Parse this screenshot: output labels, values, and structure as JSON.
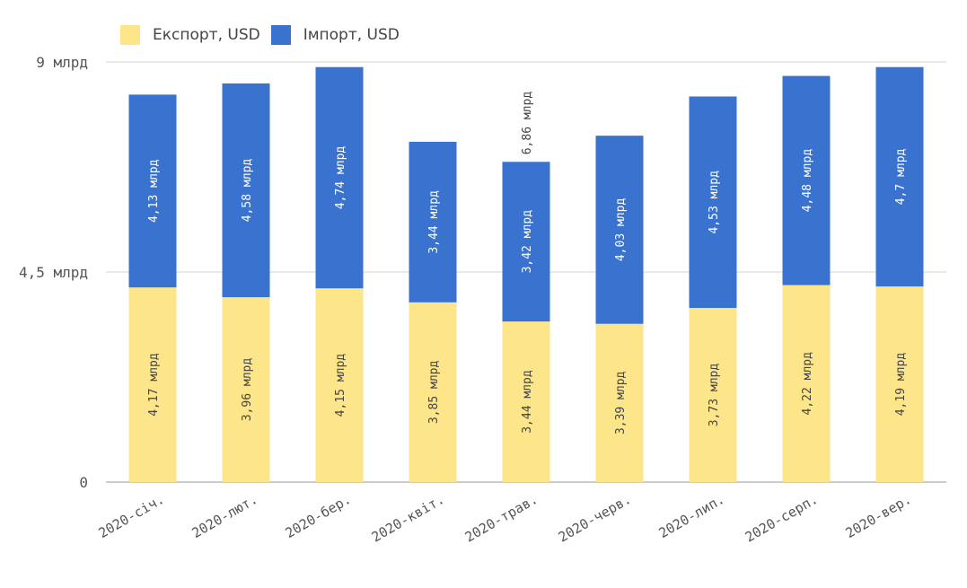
{
  "chart_data": {
    "type": "bar",
    "stacked": true,
    "categories": [
      "2020-січ.",
      "2020-лют.",
      "2020-бер.",
      "2020-квіт.",
      "2020-трав.",
      "2020-черв.",
      "2020-лип.",
      "2020-серп.",
      "2020-вер."
    ],
    "series": [
      {
        "name": "Експорт, USD",
        "color": "#fde68a",
        "values": [
          4.17,
          3.96,
          4.15,
          3.85,
          3.44,
          3.39,
          3.73,
          4.22,
          4.19
        ],
        "labels": [
          "4,17 млрд",
          "3,96 млрд",
          "4,15 млрд",
          "3,85 млрд",
          "3,44 млрд",
          "3,39 млрд",
          "3,73 млрд",
          "4,22 млрд",
          "4,19 млрд"
        ]
      },
      {
        "name": "Імпорт, USD",
        "color": "#3a73cf",
        "values": [
          4.13,
          4.58,
          4.74,
          3.44,
          3.42,
          4.03,
          4.53,
          4.48,
          4.7
        ],
        "labels": [
          "4,13 млрд",
          "4,58 млрд",
          "4,74 млрд",
          "3,44 млрд",
          "3,42 млрд",
          "4,03 млрд",
          "4,53 млрд",
          "4,48 млрд",
          "4,7 млрд"
        ]
      }
    ],
    "annotation": {
      "category_index": 4,
      "text": "6,86 млрд"
    },
    "yticks": [
      {
        "value": 0,
        "label": "0"
      },
      {
        "value": 4.5,
        "label": "4,5 млрд"
      },
      {
        "value": 9,
        "label": "9 млрд"
      }
    ],
    "ylim": [
      0,
      9
    ],
    "grid": true,
    "legend_position": "top-left",
    "title": "",
    "xlabel": "",
    "ylabel": ""
  }
}
